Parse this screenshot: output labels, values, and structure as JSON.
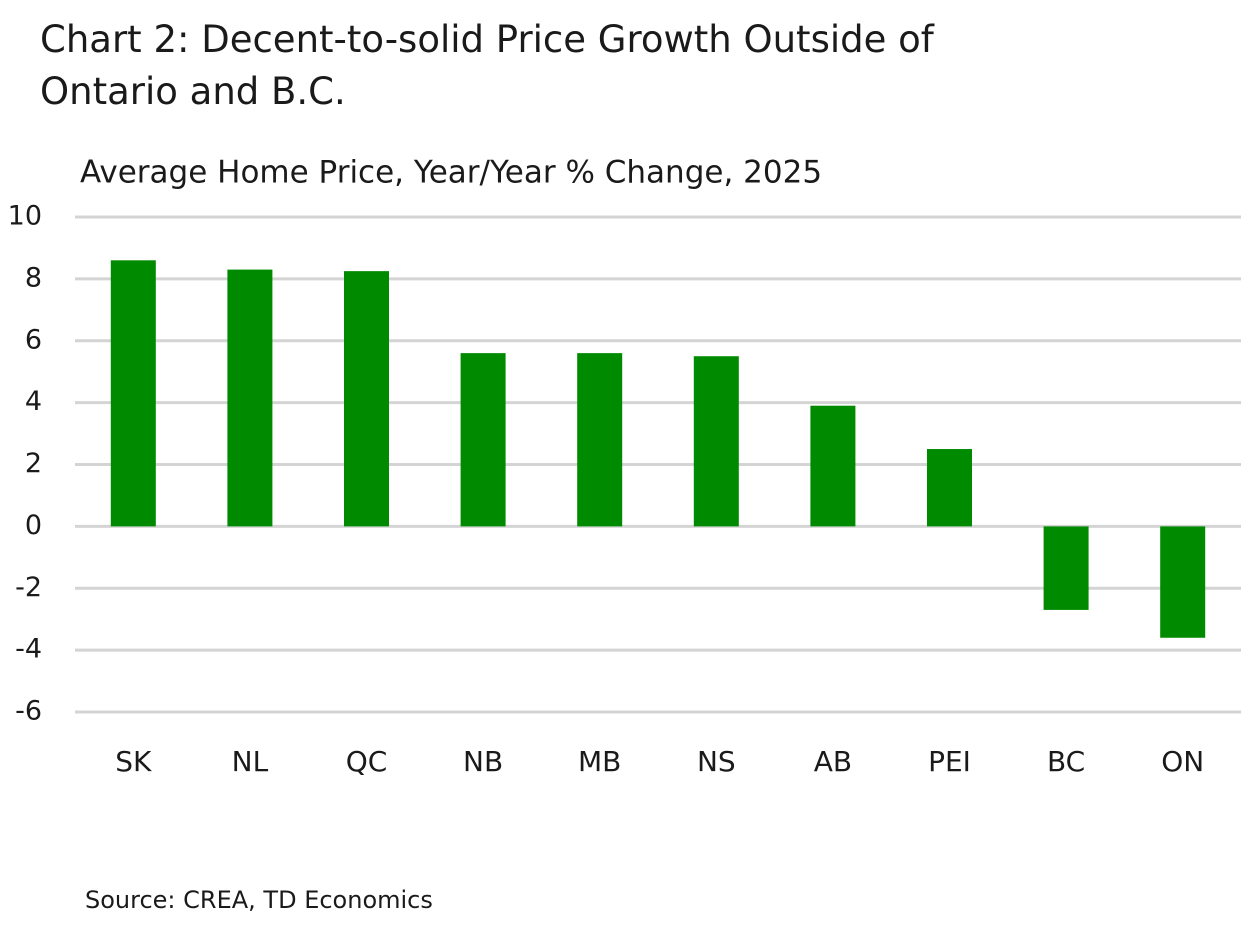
{
  "chart_data": {
    "type": "bar",
    "title": "Chart 2: Decent-to-solid Price Growth Outside of Ontario and B.C.",
    "subtitle": "Average Home Price, Year/Year % Change, 2025",
    "source": "Source: CREA, TD Economics",
    "categories": [
      "SK",
      "NL",
      "QC",
      "NB",
      "MB",
      "NS",
      "AB",
      "PEI",
      "BC",
      "ON"
    ],
    "values": [
      8.6,
      8.3,
      8.25,
      5.6,
      5.6,
      5.5,
      3.9,
      2.5,
      -2.7,
      -3.6
    ],
    "color": "#008a00",
    "ylim": [
      -6,
      10
    ],
    "yticks": [
      -6,
      -4,
      -2,
      0,
      2,
      4,
      6,
      8,
      10
    ],
    "grid": true
  }
}
